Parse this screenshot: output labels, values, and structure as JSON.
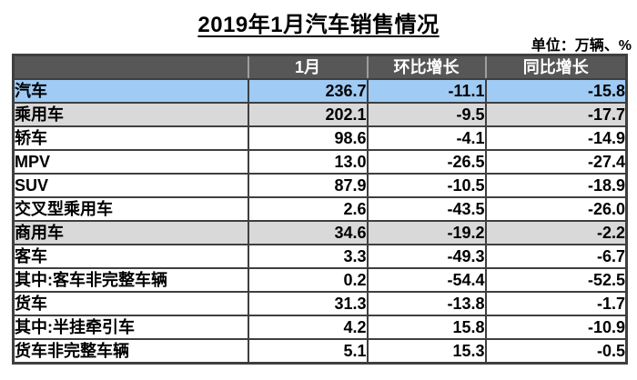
{
  "title": "2019年1月汽车销售情况",
  "unit_label": "单位：万辆、%",
  "chart_data": {
    "type": "table",
    "title": "2019年1月汽车销售情况",
    "unit": "万辆、%",
    "columns": [
      "",
      "1月",
      "环比增长",
      "同比增长"
    ],
    "rows": [
      {
        "label": "汽车",
        "indent": 0,
        "style": "blue",
        "values": [
          "236.7",
          "-11.1",
          "-15.8"
        ]
      },
      {
        "label": "乘用车",
        "indent": 1,
        "style": "gray",
        "values": [
          "202.1",
          "-9.5",
          "-17.7"
        ]
      },
      {
        "label": "轿车",
        "indent": 2,
        "style": "white",
        "values": [
          "98.6",
          "-4.1",
          "-14.9"
        ]
      },
      {
        "label": "MPV",
        "indent": 2,
        "style": "white",
        "values": [
          "13.0",
          "-26.5",
          "-27.4"
        ]
      },
      {
        "label": "SUV",
        "indent": 2,
        "style": "white",
        "values": [
          "87.9",
          "-10.5",
          "-18.9"
        ]
      },
      {
        "label": "交叉型乘用车",
        "indent": 2,
        "style": "white",
        "values": [
          "2.6",
          "-43.5",
          "-26.0"
        ]
      },
      {
        "label": "商用车",
        "indent": 1,
        "style": "gray",
        "values": [
          "34.6",
          "-19.2",
          "-2.2"
        ]
      },
      {
        "label": "客车",
        "indent": 2,
        "style": "white",
        "values": [
          "3.3",
          "-49.3",
          "-6.7"
        ]
      },
      {
        "label": "其中:客车非完整车辆",
        "indent": 3,
        "style": "white",
        "values": [
          "0.2",
          "-54.4",
          "-52.5"
        ]
      },
      {
        "label": "货车",
        "indent": 2,
        "style": "white",
        "values": [
          "31.3",
          "-13.8",
          "-1.7"
        ]
      },
      {
        "label": "其中:半挂牵引车",
        "indent": 3,
        "style": "white",
        "values": [
          "4.2",
          "15.8",
          "-10.9"
        ]
      },
      {
        "label": "货车非完整车辆",
        "indent": 3,
        "style": "white",
        "values": [
          "5.1",
          "15.3",
          "-0.5"
        ]
      }
    ]
  },
  "colors": {
    "header_bg": "#575757",
    "header_text": "#ffffff",
    "highlight_row": "#9FCBF4",
    "subtotal_row": "#D9D9D9",
    "border": "#3F3F3F",
    "header_divider": "#9E9E9E",
    "text": "#000000"
  }
}
